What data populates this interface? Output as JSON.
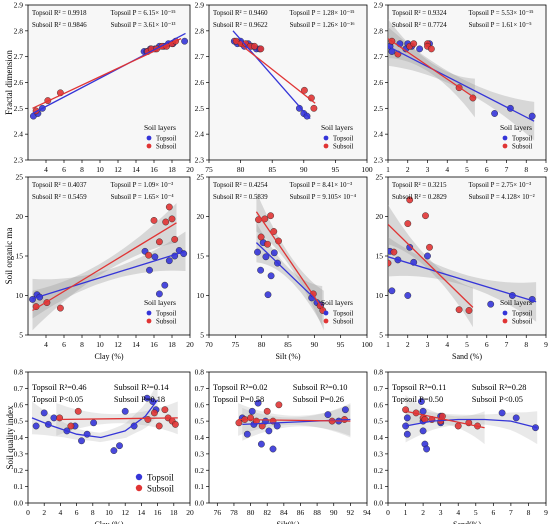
{
  "chart_data": [
    {
      "type": "scatter",
      "row": 0,
      "col": 0,
      "xlabel": "Clay (%)",
      "ylabel": "Fractal dimension",
      "xlim": [
        2,
        20
      ],
      "ylim": [
        2.3,
        2.9
      ],
      "xticks": [
        4,
        6,
        8,
        10,
        12,
        14,
        16,
        18,
        20
      ],
      "yticks": [
        2.3,
        2.4,
        2.5,
        2.6,
        2.7,
        2.8,
        2.9
      ],
      "stats": [
        "Topsoil  R² = 0.9918",
        "Topsoil  P = 6.15× 10⁻¹⁵",
        "Subsoil  R² = 0.9846",
        "Subsoil  P = 3.61× 10⁻¹³"
      ],
      "legend": {
        "title": "Soil layers",
        "position": "bottom-right"
      },
      "series": [
        {
          "name": "Topsoil",
          "color": "#3535d8",
          "x": [
            2.6,
            3.1,
            3.6,
            14.9,
            15.2,
            15.6,
            16.1,
            16.6,
            17.1,
            17.6,
            18.1,
            19.4
          ],
          "y": [
            2.47,
            2.48,
            2.5,
            2.72,
            2.72,
            2.73,
            2.73,
            2.74,
            2.74,
            2.75,
            2.75,
            2.76
          ],
          "fit": [
            [
              2.5,
              2.48
            ],
            [
              19.5,
              2.79
            ]
          ]
        },
        {
          "name": "Subsoil",
          "color": "#e03434",
          "x": [
            2.9,
            4.2,
            5.6,
            15.3,
            15.7,
            16.3,
            16.9,
            17.4,
            18.0,
            18.4
          ],
          "y": [
            2.49,
            2.53,
            2.56,
            2.72,
            2.73,
            2.73,
            2.74,
            2.74,
            2.75,
            2.76
          ],
          "fit": [
            [
              2.5,
              2.5
            ],
            [
              19.0,
              2.77
            ]
          ]
        }
      ],
      "band": "none"
    },
    {
      "type": "scatter",
      "row": 0,
      "col": 1,
      "xlabel": "Silt (%)",
      "ylabel": "",
      "xlim": [
        75,
        100
      ],
      "ylim": [
        2.3,
        2.9
      ],
      "xticks": [
        75,
        80,
        85,
        90,
        95,
        100
      ],
      "yticks": [
        2.3,
        2.4,
        2.5,
        2.6,
        2.7,
        2.8,
        2.9
      ],
      "stats": [
        "Topsoil  R² = 0.9460",
        "Topsoil  P = 1.28× 10⁻¹⁵",
        "Subsoil  R² = 0.9622",
        "Subsoil  P = 1.26× 10⁻¹⁶"
      ],
      "legend": {
        "title": "Soil layers",
        "position": "bottom-right"
      },
      "series": [
        {
          "name": "Topsoil",
          "color": "#3535d8",
          "x": [
            79.0,
            79.5,
            80.0,
            80.6,
            81.2,
            81.8,
            82.5,
            83.0,
            89.3,
            90.0,
            90.5
          ],
          "y": [
            2.76,
            2.75,
            2.76,
            2.74,
            2.75,
            2.74,
            2.73,
            2.73,
            2.5,
            2.48,
            2.47
          ],
          "fit": [
            [
              78.8,
              2.8
            ],
            [
              91.0,
              2.46
            ]
          ]
        },
        {
          "name": "Subsoil",
          "color": "#e03434",
          "x": [
            79.3,
            80.1,
            80.8,
            81.5,
            82.2,
            83.2,
            90.1,
            91.2,
            91.6
          ],
          "y": [
            2.76,
            2.75,
            2.75,
            2.74,
            2.74,
            2.73,
            2.57,
            2.54,
            2.5
          ],
          "fit": [
            [
              78.8,
              2.77
            ],
            [
              91.8,
              2.52
            ]
          ]
        }
      ],
      "band": "none"
    },
    {
      "type": "scatter",
      "row": 0,
      "col": 2,
      "xlabel": "Sand (%)",
      "ylabel": "",
      "xlim": [
        1,
        9
      ],
      "ylim": [
        2.3,
        2.9
      ],
      "xticks": [
        1,
        2,
        3,
        4,
        5,
        6,
        7,
        8,
        9
      ],
      "yticks": [
        2.3,
        2.4,
        2.5,
        2.6,
        2.7,
        2.8,
        2.9
      ],
      "stats": [
        "Topsoil  R² = 0.9324",
        "Topsoil  P = 5.53× 10⁻¹⁵",
        "Subsoil  R² = 0.7724",
        "Subsoil  P = 1.61× 10⁻⁵"
      ],
      "legend": {
        "title": "Soil layers",
        "position": "bottom-right"
      },
      "series": [
        {
          "name": "Topsoil",
          "color": "#3535d8",
          "x": [
            1.1,
            1.2,
            1.6,
            1.9,
            2.0,
            2.2,
            2.6,
            3.1,
            6.4,
            7.2,
            8.3
          ],
          "y": [
            2.74,
            2.72,
            2.75,
            2.73,
            2.75,
            2.74,
            2.73,
            2.75,
            2.48,
            2.5,
            2.47
          ],
          "fit": [
            [
              1.0,
              2.74
            ],
            [
              8.4,
              2.45
            ]
          ]
        },
        {
          "name": "Subsoil",
          "color": "#e03434",
          "x": [
            1.2,
            1.5,
            2.1,
            2.3,
            3.0,
            3.0,
            3.2,
            4.6,
            5.3
          ],
          "y": [
            2.76,
            2.71,
            2.74,
            2.75,
            2.75,
            2.74,
            2.73,
            2.58,
            2.54
          ],
          "fit": [
            [
              1.0,
              2.77
            ],
            [
              5.4,
              2.54
            ]
          ]
        }
      ],
      "band": "grey"
    },
    {
      "type": "scatter",
      "row": 1,
      "col": 0,
      "xlabel": "Clay (%)",
      "ylabel": "Soil organic ma",
      "xlim": [
        2,
        20
      ],
      "ylim": [
        5,
        25
      ],
      "xticks": [
        4,
        6,
        8,
        10,
        12,
        14,
        16,
        18,
        20
      ],
      "yticks": [
        5,
        10,
        15,
        20,
        25
      ],
      "stats": [
        "Topsoil  R² = 0.4037",
        "Topsoil  P = 1.09× 10⁻³",
        "Subsoil  R² = 0.5459",
        "Subsoil  P = 1.65× 10⁻⁴"
      ],
      "legend": {
        "title": "Soil layers",
        "position": "bottom-right"
      },
      "series": [
        {
          "name": "Topsoil",
          "color": "#3535d8",
          "x": [
            2.5,
            3.0,
            3.3,
            15.0,
            15.5,
            16.1,
            16.6,
            17.2,
            17.7,
            18.3,
            18.8,
            19.3
          ],
          "y": [
            9.5,
            10.1,
            9.8,
            15.6,
            13.2,
            14.9,
            10.2,
            11.3,
            14.4,
            15.0,
            15.7,
            15.3
          ],
          "fit": [
            [
              2.5,
              9.6
            ],
            [
              19.5,
              15.6
            ]
          ]
        },
        {
          "name": "Subsoil",
          "color": "#e03434",
          "x": [
            2.9,
            4.1,
            5.6,
            15.4,
            16.0,
            16.6,
            17.3,
            17.7,
            18.0,
            18.3
          ],
          "y": [
            8.6,
            9.1,
            8.4,
            15.1,
            19.5,
            16.8,
            19.3,
            21.2,
            19.7,
            17.1
          ],
          "fit": [
            [
              2.5,
              8.1
            ],
            [
              18.5,
              19.2
            ]
          ]
        }
      ],
      "band": "grey"
    },
    {
      "type": "scatter",
      "row": 1,
      "col": 1,
      "xlabel": "Silt (%)",
      "ylabel": "",
      "xlim": [
        70,
        100
      ],
      "ylim": [
        5,
        25
      ],
      "xticks": [
        70,
        75,
        80,
        85,
        90,
        95,
        100
      ],
      "yticks": [
        5,
        10,
        15,
        20,
        25
      ],
      "stats": [
        "Topsoil  R² = 0.4254",
        "Topsoil  P = 8.41× 10⁻³",
        "Subsoil  R² = 0.5839",
        "Subsoil  P = 9.105× 10⁻⁴"
      ],
      "legend": {
        "title": "Soil layers",
        "position": "bottom-right"
      },
      "series": [
        {
          "name": "Topsoil",
          "color": "#3535d8",
          "x": [
            79.2,
            79.8,
            80.3,
            80.8,
            81.2,
            81.8,
            82.4,
            83.0,
            89.5,
            90.5,
            91.2
          ],
          "y": [
            15.5,
            13.2,
            16.7,
            14.9,
            10.1,
            12.5,
            15.4,
            14.1,
            9.7,
            9.1,
            8.8
          ],
          "fit": [
            [
              79.0,
              16.7
            ],
            [
              91.5,
              8.7
            ]
          ]
        },
        {
          "name": "Subsoil",
          "color": "#e03434",
          "x": [
            79.4,
            79.9,
            80.6,
            81.1,
            81.7,
            82.3,
            83.2,
            89.8,
            91.1,
            91.6
          ],
          "y": [
            19.6,
            17.4,
            19.7,
            16.5,
            20.1,
            18.1,
            16.9,
            10.2,
            8.7,
            8.1
          ],
          "fit": [
            [
              79.0,
              20.6
            ],
            [
              91.8,
              8.1
            ]
          ]
        }
      ],
      "band": "grey"
    },
    {
      "type": "scatter",
      "row": 1,
      "col": 2,
      "xlabel": "Sand (%)",
      "ylabel": "",
      "xlim": [
        1,
        9
      ],
      "ylim": [
        5,
        25
      ],
      "xticks": [
        1,
        2,
        3,
        4,
        5,
        6,
        7,
        8,
        9
      ],
      "yticks": [
        5,
        10,
        15,
        20,
        25
      ],
      "stats": [
        "Topsoil  R² = 0.3215",
        "Topsoil  P = 2.75× 10⁻³",
        "Subsoil  R² = 0.2829",
        "Subsoil  P = 4.128× 10⁻²"
      ],
      "legend": {
        "title": "Soil layers",
        "position": "bottom-right"
      },
      "series": [
        {
          "name": "Topsoil",
          "color": "#3535d8",
          "x": [
            1.1,
            1.2,
            1.5,
            2.0,
            2.1,
            2.3,
            3.0,
            6.2,
            7.3,
            8.3
          ],
          "y": [
            15.6,
            10.6,
            14.5,
            10.0,
            16.1,
            14.2,
            15.0,
            8.9,
            10.0,
            9.5
          ],
          "fit": [
            [
              1.0,
              14.9
            ],
            [
              8.5,
              9.2
            ]
          ]
        },
        {
          "name": "Subsoil",
          "color": "#e03434",
          "x": [
            1.0,
            1.3,
            2.0,
            2.1,
            2.9,
            3.1,
            4.6,
            5.1
          ],
          "y": [
            14.1,
            15.5,
            19.1,
            22.1,
            20.1,
            16.1,
            8.2,
            8.1
          ],
          "fit": [
            [
              1.0,
              19.0
            ],
            [
              5.3,
              8.5
            ]
          ]
        }
      ],
      "band": "grey"
    },
    {
      "type": "scatter",
      "row": 2,
      "col": 0,
      "xlabel": "Clay (%)",
      "ylabel": "Soil quality index",
      "xlim": [
        0,
        20
      ],
      "ylim": [
        0.0,
        0.8
      ],
      "xticks": [
        0,
        2,
        4,
        6,
        8,
        10,
        12,
        14,
        16,
        18,
        20
      ],
      "yticks": [
        0.0,
        0.1,
        0.2,
        0.3,
        0.4,
        0.5,
        0.6,
        0.7,
        0.8
      ],
      "stats": [
        "Topsoil R²=0.46",
        "Subsoil R²=0.14",
        "Topsoil P<0.05",
        "Subsoil P=0.18"
      ],
      "legend": {
        "title": "",
        "position": "bottom-right"
      },
      "series": [
        {
          "name": "Topsoil",
          "color": "#3535d8",
          "x": [
            1.0,
            2.0,
            2.5,
            3.2,
            4.8,
            5.8,
            6.6,
            7.3,
            8.1,
            10.6,
            11.3,
            12.0,
            13.1,
            14.7,
            15.4,
            15.8
          ],
          "y": [
            0.47,
            0.55,
            0.48,
            0.52,
            0.44,
            0.47,
            0.38,
            0.42,
            0.49,
            0.32,
            0.35,
            0.56,
            0.47,
            0.64,
            0.62,
            0.57
          ],
          "fit": [
            [
              0.5,
              0.52
            ],
            [
              3.0,
              0.47
            ],
            [
              6.0,
              0.42
            ],
            [
              9.0,
              0.4
            ],
            [
              12.0,
              0.44
            ],
            [
              14.5,
              0.53
            ],
            [
              16.0,
              0.63
            ]
          ]
        },
        {
          "name": "Subsoil",
          "color": "#e03434",
          "x": [
            3.9,
            5.3,
            6.2,
            14.8,
            15.6,
            16.2,
            16.9,
            17.3,
            17.8,
            18.2
          ],
          "y": [
            0.52,
            0.47,
            0.56,
            0.51,
            0.55,
            0.47,
            0.57,
            0.52,
            0.5,
            0.48
          ],
          "fit": [
            [
              3.5,
              0.51
            ],
            [
              18.5,
              0.52
            ]
          ]
        }
      ],
      "band": "grey"
    },
    {
      "type": "scatter",
      "row": 2,
      "col": 1,
      "xlabel": "Silt(%)",
      "ylabel": "",
      "xlim": [
        75,
        94
      ],
      "ylim": [
        0.0,
        0.8
      ],
      "xticks": [
        76,
        78,
        80,
        82,
        84,
        86,
        88,
        90,
        92,
        94
      ],
      "yticks": [
        0.0,
        0.1,
        0.2,
        0.3,
        0.4,
        0.5,
        0.6,
        0.7,
        0.8
      ],
      "stats": [
        "Topsoil R²=0.02",
        "Subsoil R²=0.10",
        "Topsoil P=0.58",
        "Subsoil P=0.26"
      ],
      "legend": {
        "title": "",
        "position": "bottom-right"
      },
      "series": [
        {
          "name": "Topsoil",
          "color": "#3535d8",
          "x": [
            79.0,
            79.6,
            80.2,
            80.4,
            80.9,
            81.3,
            81.8,
            82.2,
            82.7,
            83.2,
            89.3,
            90.6,
            91.4
          ],
          "y": [
            0.52,
            0.42,
            0.56,
            0.48,
            0.61,
            0.36,
            0.5,
            0.44,
            0.33,
            0.47,
            0.54,
            0.5,
            0.57
          ],
          "fit": [
            [
              79.0,
              0.48
            ],
            [
              92.0,
              0.51
            ]
          ]
        },
        {
          "name": "Subsoil",
          "color": "#e03434",
          "x": [
            78.6,
            79.3,
            80.0,
            80.7,
            81.4,
            82.0,
            82.7,
            83.4,
            89.8,
            91.3
          ],
          "y": [
            0.49,
            0.51,
            0.52,
            0.5,
            0.47,
            0.56,
            0.5,
            0.6,
            0.5,
            0.51
          ],
          "fit": [
            [
              78.5,
              0.51
            ],
            [
              92.0,
              0.5
            ]
          ]
        }
      ],
      "band": "grey"
    },
    {
      "type": "scatter",
      "row": 2,
      "col": 2,
      "xlabel": "Sand(%)",
      "ylabel": "",
      "xlim": [
        0,
        9
      ],
      "ylim": [
        0.0,
        0.8
      ],
      "xticks": [
        0,
        1,
        2,
        3,
        4,
        5,
        6,
        7,
        8,
        9
      ],
      "yticks": [
        0.0,
        0.1,
        0.2,
        0.3,
        0.4,
        0.5,
        0.6,
        0.7,
        0.8
      ],
      "stats": [
        "Topsoil R²=0.11",
        "Subsoil R²=0.28",
        "Topsoil P=0.50",
        "Subsoil P<0.05"
      ],
      "legend": {
        "title": "",
        "position": "bottom-right"
      },
      "series": [
        {
          "name": "Topsoil",
          "color": "#3535d8",
          "x": [
            1.0,
            1.1,
            1.1,
            1.9,
            2.0,
            2.0,
            2.0,
            2.1,
            2.2,
            3.0,
            3.0,
            6.5,
            7.3,
            8.4
          ],
          "y": [
            0.47,
            0.42,
            0.52,
            0.62,
            0.56,
            0.5,
            0.44,
            0.36,
            0.33,
            0.49,
            0.53,
            0.55,
            0.52,
            0.46
          ],
          "fit": [
            [
              1.0,
              0.47
            ],
            [
              2.5,
              0.5
            ],
            [
              4.0,
              0.51
            ],
            [
              5.5,
              0.51
            ],
            [
              7.0,
              0.5
            ],
            [
              8.5,
              0.46
            ]
          ]
        },
        {
          "name": "Subsoil",
          "color": "#e03434",
          "x": [
            1.0,
            1.6,
            2.0,
            2.1,
            2.5,
            3.0,
            3.1,
            4.0,
            4.6,
            5.1
          ],
          "y": [
            0.57,
            0.55,
            0.52,
            0.51,
            0.51,
            0.5,
            0.53,
            0.47,
            0.49,
            0.47
          ],
          "fit": [
            [
              1.0,
              0.56
            ],
            [
              5.5,
              0.46
            ]
          ]
        }
      ],
      "band": "grey"
    }
  ]
}
